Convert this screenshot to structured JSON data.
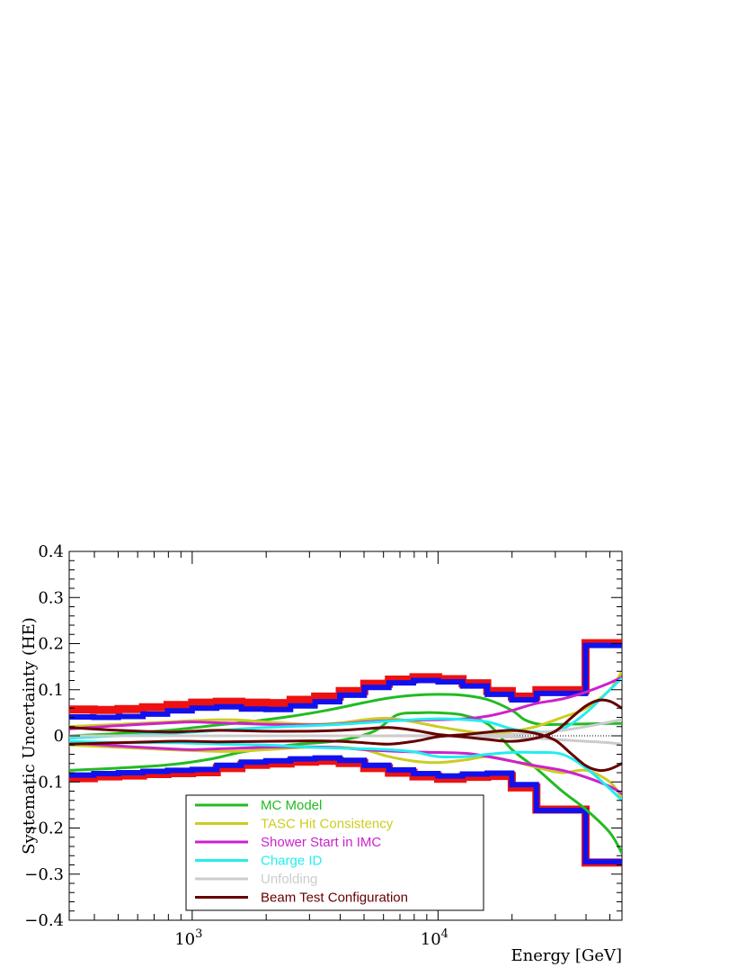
{
  "chart_data": {
    "type": "line",
    "title": "",
    "xlabel": "Energy [GeV]",
    "ylabel": "Systematic Uncertainty (HE)",
    "xscale": "log",
    "xlim": [
      316,
      56000
    ],
    "ylim": [
      -0.4,
      0.4
    ],
    "grid": false,
    "legend_position": "bottom-center",
    "y_ticks": [
      "0.4",
      "0.3",
      "0.2",
      "0.1",
      "0",
      "−0.1",
      "−0.2",
      "−0.3",
      "−0.4"
    ],
    "y_tick_values": [
      0.4,
      0.3,
      0.2,
      0.1,
      0,
      -0.1,
      -0.2,
      -0.3,
      -0.4
    ],
    "x_ticks": [
      {
        "value": 1000,
        "base": "10",
        "exp": "3"
      },
      {
        "value": 10000,
        "base": "10",
        "exp": "4"
      }
    ],
    "bin_edges": [
      316,
      398,
      501,
      631,
      794,
      1000,
      1259,
      1585,
      1995,
      2512,
      3162,
      3981,
      5012,
      6310,
      7943,
      10000,
      12589,
      15849,
      19953,
      25119,
      39811,
      56000
    ],
    "total_upper_red": [
      0.057,
      0.056,
      0.058,
      0.062,
      0.067,
      0.072,
      0.074,
      0.072,
      0.071,
      0.078,
      0.085,
      0.097,
      0.113,
      0.122,
      0.127,
      0.123,
      0.114,
      0.097,
      0.085,
      0.099,
      0.201
    ],
    "total_lower_red": [
      -0.092,
      -0.088,
      -0.086,
      -0.083,
      -0.081,
      -0.079,
      -0.07,
      -0.063,
      -0.06,
      -0.056,
      -0.054,
      -0.059,
      -0.07,
      -0.08,
      -0.088,
      -0.093,
      -0.089,
      -0.087,
      -0.112,
      -0.16,
      -0.275
    ],
    "total_upper_blue": [
      0.041,
      0.04,
      0.042,
      0.047,
      0.054,
      0.06,
      0.063,
      0.058,
      0.057,
      0.065,
      0.074,
      0.088,
      0.105,
      0.115,
      0.12,
      0.117,
      0.108,
      0.09,
      0.078,
      0.092,
      0.196
    ],
    "total_lower_blue": [
      -0.085,
      -0.082,
      -0.08,
      -0.077,
      -0.075,
      -0.073,
      -0.064,
      -0.057,
      -0.054,
      -0.05,
      -0.048,
      -0.053,
      -0.064,
      -0.074,
      -0.082,
      -0.087,
      -0.083,
      -0.081,
      -0.106,
      -0.162,
      -0.273
    ],
    "series": [
      {
        "name": "MC Model",
        "color": "#22bb22",
        "curves": [
          {
            "x": [
              316,
              500,
              800,
              1200,
              1800,
              2500,
              3500,
              5000,
              6300,
              8000,
              10000,
              12600,
              16000,
              20000,
              22500,
              26000,
              32000,
              40000,
              56000
            ],
            "y": [
              0.0,
              0.005,
              0.012,
              0.022,
              0.032,
              0.042,
              0.055,
              0.072,
              0.082,
              0.088,
              0.09,
              0.088,
              0.078,
              0.055,
              0.035,
              0.025,
              0.025,
              0.026,
              0.027
            ]
          },
          {
            "x": [
              316,
              500,
              800,
              1200,
              1600,
              2500,
              4000,
              5500,
              6800,
              8500,
              10000,
              12600,
              16000,
              20000,
              25000,
              32000,
              40000,
              50000,
              56000
            ],
            "y": [
              -0.075,
              -0.07,
              -0.063,
              -0.05,
              -0.035,
              -0.02,
              -0.01,
              0.01,
              0.045,
              0.05,
              0.05,
              0.045,
              0.025,
              -0.03,
              -0.07,
              -0.12,
              -0.16,
              -0.21,
              -0.255
            ]
          }
        ]
      },
      {
        "name": "TASC Hit Consistency",
        "color": "#cccc22",
        "curves": [
          {
            "x": [
              316,
              500,
              800,
              1000,
              1300,
              1600,
              2000,
              3000,
              4000,
              5000,
              6300,
              8000,
              10000,
              13000,
              16000,
              20000,
              25000,
              32000,
              40000,
              50000,
              56000
            ],
            "y": [
              0.02,
              0.025,
              0.03,
              0.033,
              0.035,
              0.034,
              0.03,
              0.025,
              0.028,
              0.035,
              0.038,
              0.03,
              0.02,
              0.01,
              0.005,
              0.01,
              0.02,
              0.04,
              0.06,
              0.1,
              0.14
            ]
          },
          {
            "x": [
              316,
              500,
              800,
              1000,
              1300,
              1600,
              2000,
              3000,
              4000,
              5000,
              6300,
              8000,
              10000,
              13000,
              16000,
              20000,
              25000,
              32000,
              40000,
              50000,
              56000
            ],
            "y": [
              -0.02,
              -0.025,
              -0.03,
              -0.032,
              -0.034,
              -0.033,
              -0.03,
              -0.025,
              -0.025,
              -0.03,
              -0.045,
              -0.055,
              -0.058,
              -0.052,
              -0.045,
              -0.055,
              -0.068,
              -0.08,
              -0.075,
              -0.1,
              -0.135
            ]
          }
        ]
      },
      {
        "name": "Shower Start in IMC",
        "color": "#cc22cc",
        "curves": [
          {
            "x": [
              316,
              500,
              800,
              1000,
              1300,
              2000,
              3000,
              4000,
              5000,
              6300,
              8000,
              10000,
              13000,
              16000,
              20000,
              25000,
              32000,
              40000,
              50000,
              56000
            ],
            "y": [
              0.015,
              0.022,
              0.028,
              0.03,
              0.028,
              0.025,
              0.024,
              0.026,
              0.03,
              0.033,
              0.034,
              0.035,
              0.037,
              0.043,
              0.055,
              0.07,
              0.08,
              0.095,
              0.115,
              0.127
            ]
          },
          {
            "x": [
              316,
              500,
              800,
              1000,
              1300,
              2000,
              3000,
              4000,
              5000,
              6300,
              8000,
              10000,
              13000,
              16000,
              20000,
              25000,
              32000,
              40000,
              50000,
              56000
            ],
            "y": [
              -0.015,
              -0.022,
              -0.028,
              -0.03,
              -0.028,
              -0.025,
              -0.024,
              -0.026,
              -0.03,
              -0.033,
              -0.035,
              -0.036,
              -0.038,
              -0.045,
              -0.055,
              -0.065,
              -0.075,
              -0.09,
              -0.11,
              -0.125
            ]
          }
        ]
      },
      {
        "name": "Charge ID",
        "color": "#22eeee",
        "curves": [
          {
            "x": [
              316,
              500,
              800,
              1000,
              1300,
              2000,
              3000,
              4000,
              5000,
              6300,
              8000,
              10000,
              13000,
              16000,
              20000,
              25000,
              32000,
              40000,
              50000,
              56000
            ],
            "y": [
              -0.005,
              0.0,
              0.005,
              0.008,
              0.012,
              0.018,
              0.022,
              0.025,
              0.028,
              0.032,
              0.035,
              0.037,
              0.035,
              0.03,
              0.015,
              0.008,
              0.015,
              0.05,
              0.1,
              0.125
            ]
          },
          {
            "x": [
              316,
              500,
              800,
              1000,
              1300,
              2000,
              3000,
              4000,
              5000,
              6300,
              8000,
              10000,
              13000,
              16000,
              20000,
              25000,
              32000,
              40000,
              50000,
              56000
            ],
            "y": [
              -0.012,
              -0.015,
              -0.015,
              -0.016,
              -0.018,
              -0.02,
              -0.025,
              -0.027,
              -0.028,
              -0.03,
              -0.035,
              -0.045,
              -0.045,
              -0.04,
              -0.036,
              -0.036,
              -0.04,
              -0.07,
              -0.115,
              -0.14
            ]
          }
        ]
      },
      {
        "name": "Unfolding",
        "color": "#cccccc",
        "curves": [
          {
            "x": [
              316,
              1000,
              5000,
              10000,
              20000,
              30000,
              40000,
              50000,
              56000
            ],
            "y": [
              0.0,
              0.0,
              0.0,
              0.0,
              0.003,
              0.01,
              0.02,
              0.03,
              0.035
            ]
          },
          {
            "x": [
              316,
              1000,
              5000,
              10000,
              20000,
              30000,
              40000,
              50000,
              56000
            ],
            "y": [
              0.0,
              0.0,
              0.0,
              0.0,
              -0.003,
              -0.008,
              -0.012,
              -0.015,
              -0.018
            ]
          }
        ]
      },
      {
        "name": "Beam Test Configuration",
        "color": "#660000",
        "curves": [
          {
            "x": [
              316,
              500,
              800,
              1000,
              1300,
              2000,
              3000,
              4000,
              5000,
              6300,
              8000,
              10000,
              13000,
              16000,
              20000,
              25000,
              30000,
              35000,
              40000,
              45000,
              50000,
              56000
            ],
            "y": [
              0.018,
              0.012,
              0.008,
              0.01,
              0.012,
              0.01,
              0.01,
              0.012,
              0.015,
              0.018,
              0.012,
              0.003,
              -0.003,
              -0.008,
              -0.012,
              -0.005,
              0.01,
              0.04,
              0.065,
              0.077,
              0.075,
              0.06
            ]
          },
          {
            "x": [
              316,
              500,
              800,
              1000,
              1300,
              2000,
              3000,
              4000,
              5000,
              6300,
              8000,
              10000,
              13000,
              16000,
              20000,
              25000,
              30000,
              35000,
              40000,
              45000,
              50000,
              56000
            ],
            "y": [
              -0.018,
              -0.015,
              -0.012,
              -0.012,
              -0.013,
              -0.012,
              -0.011,
              -0.012,
              -0.015,
              -0.018,
              -0.012,
              -0.002,
              0.003,
              0.008,
              0.012,
              0.005,
              -0.01,
              -0.04,
              -0.065,
              -0.075,
              -0.072,
              -0.06
            ]
          }
        ]
      }
    ]
  }
}
